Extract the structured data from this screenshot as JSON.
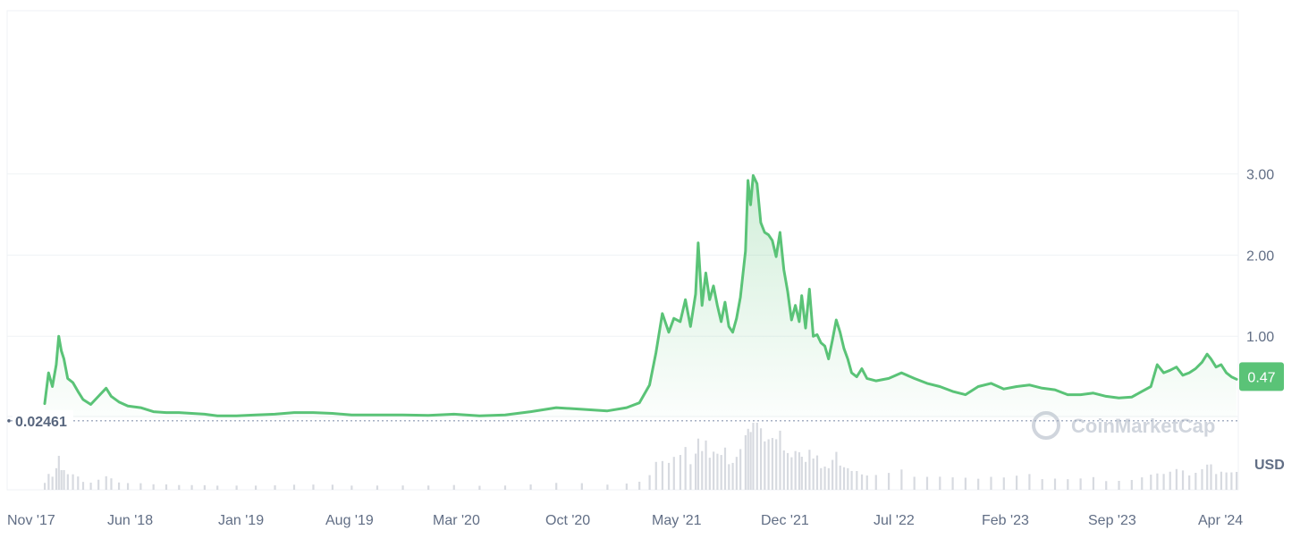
{
  "chart_data": {
    "type": "area",
    "currency_label": "USD",
    "watermark": "CoinMarketCap",
    "current_price_label": "0.47",
    "current_price": 0.47,
    "min_price_label": "0.02461",
    "min_price": 0.02461,
    "ylim": [
      -0.8,
      3.9
    ],
    "y_ticks": [
      {
        "value": 1,
        "label": "1.00"
      },
      {
        "value": 2,
        "label": "2.00"
      },
      {
        "value": 3,
        "label": "3.00"
      }
    ],
    "x_ticks": [
      "Nov '17",
      "Jun '18",
      "Jan '19",
      "Aug '19",
      "Mar '20",
      "Oct '20",
      "May '21",
      "Dec '21",
      "Jul '22",
      "Feb '23",
      "Sep '23",
      "Apr '24"
    ],
    "x_start": "2017-10",
    "x_end": "2024-04",
    "colors": {
      "line": "#5ac377",
      "area_top": "#5ac377",
      "badge": "#5ac377",
      "grid": "#eff2f5",
      "volume": "#d7dae0",
      "dotted": "#a6b0c3"
    },
    "series": [
      {
        "values": [
          [
            0.0,
            0.17
          ],
          [
            0.3,
            0.55
          ],
          [
            0.6,
            0.38
          ],
          [
            0.9,
            0.65
          ],
          [
            1.1,
            1.0
          ],
          [
            1.3,
            0.82
          ],
          [
            1.5,
            0.72
          ],
          [
            1.8,
            0.48
          ],
          [
            2.2,
            0.43
          ],
          [
            2.6,
            0.32
          ],
          [
            3.0,
            0.22
          ],
          [
            3.6,
            0.16
          ],
          [
            4.2,
            0.26
          ],
          [
            4.8,
            0.36
          ],
          [
            5.2,
            0.26
          ],
          [
            5.8,
            0.19
          ],
          [
            6.5,
            0.14
          ],
          [
            7.5,
            0.12
          ],
          [
            8.5,
            0.07
          ],
          [
            9.5,
            0.06
          ],
          [
            10.5,
            0.06
          ],
          [
            11.5,
            0.05
          ],
          [
            12.5,
            0.04
          ],
          [
            13.5,
            0.02
          ],
          [
            15,
            0.02
          ],
          [
            16.5,
            0.03
          ],
          [
            18,
            0.04
          ],
          [
            19.5,
            0.06
          ],
          [
            21,
            0.06
          ],
          [
            22.5,
            0.05
          ],
          [
            24,
            0.03
          ],
          [
            26,
            0.03
          ],
          [
            28,
            0.03
          ],
          [
            30,
            0.025
          ],
          [
            32,
            0.04
          ],
          [
            34,
            0.02
          ],
          [
            36,
            0.03
          ],
          [
            38,
            0.07
          ],
          [
            40,
            0.12
          ],
          [
            42,
            0.1
          ],
          [
            44,
            0.08
          ],
          [
            45.5,
            0.12
          ],
          [
            46.5,
            0.18
          ],
          [
            47.3,
            0.4
          ],
          [
            47.8,
            0.8
          ],
          [
            48.3,
            1.28
          ],
          [
            48.8,
            1.05
          ],
          [
            49.2,
            1.22
          ],
          [
            49.7,
            1.18
          ],
          [
            50.1,
            1.45
          ],
          [
            50.5,
            1.12
          ],
          [
            50.9,
            1.52
          ],
          [
            51.1,
            2.15
          ],
          [
            51.4,
            1.38
          ],
          [
            51.7,
            1.78
          ],
          [
            52.0,
            1.45
          ],
          [
            52.3,
            1.62
          ],
          [
            52.6,
            1.38
          ],
          [
            52.9,
            1.18
          ],
          [
            53.2,
            1.42
          ],
          [
            53.5,
            1.12
          ],
          [
            53.8,
            1.05
          ],
          [
            54.1,
            1.22
          ],
          [
            54.4,
            1.48
          ],
          [
            54.8,
            2.05
          ],
          [
            55.0,
            2.92
          ],
          [
            55.2,
            2.62
          ],
          [
            55.4,
            2.98
          ],
          [
            55.7,
            2.88
          ],
          [
            56.0,
            2.4
          ],
          [
            56.3,
            2.28
          ],
          [
            56.6,
            2.25
          ],
          [
            56.9,
            2.18
          ],
          [
            57.2,
            1.98
          ],
          [
            57.5,
            2.28
          ],
          [
            57.8,
            1.82
          ],
          [
            58.1,
            1.55
          ],
          [
            58.4,
            1.2
          ],
          [
            58.7,
            1.38
          ],
          [
            59.0,
            1.18
          ],
          [
            59.2,
            1.5
          ],
          [
            59.5,
            1.1
          ],
          [
            59.8,
            1.58
          ],
          [
            60.1,
            1.0
          ],
          [
            60.4,
            1.02
          ],
          [
            60.7,
            0.92
          ],
          [
            61.0,
            0.88
          ],
          [
            61.3,
            0.72
          ],
          [
            61.6,
            0.95
          ],
          [
            61.9,
            1.2
          ],
          [
            62.2,
            1.05
          ],
          [
            62.5,
            0.85
          ],
          [
            62.8,
            0.72
          ],
          [
            63.1,
            0.55
          ],
          [
            63.5,
            0.5
          ],
          [
            63.9,
            0.6
          ],
          [
            64.3,
            0.48
          ],
          [
            65,
            0.45
          ],
          [
            66,
            0.48
          ],
          [
            67,
            0.55
          ],
          [
            68,
            0.48
          ],
          [
            69,
            0.42
          ],
          [
            70,
            0.38
          ],
          [
            71,
            0.32
          ],
          [
            72,
            0.28
          ],
          [
            73,
            0.38
          ],
          [
            74,
            0.42
          ],
          [
            75,
            0.35
          ],
          [
            76,
            0.38
          ],
          [
            77,
            0.4
          ],
          [
            78,
            0.36
          ],
          [
            79,
            0.34
          ],
          [
            80,
            0.28
          ],
          [
            81,
            0.28
          ],
          [
            82,
            0.3
          ],
          [
            83,
            0.26
          ],
          [
            84,
            0.24
          ],
          [
            85,
            0.25
          ],
          [
            85.8,
            0.32
          ],
          [
            86.5,
            0.38
          ],
          [
            87,
            0.65
          ],
          [
            87.5,
            0.55
          ],
          [
            88,
            0.58
          ],
          [
            88.5,
            0.62
          ],
          [
            89,
            0.52
          ],
          [
            89.5,
            0.55
          ],
          [
            90,
            0.6
          ],
          [
            90.5,
            0.68
          ],
          [
            90.9,
            0.78
          ],
          [
            91.2,
            0.72
          ],
          [
            91.6,
            0.62
          ],
          [
            92,
            0.65
          ],
          [
            92.4,
            0.55
          ],
          [
            92.8,
            0.5
          ],
          [
            93.2,
            0.47
          ]
        ]
      }
    ]
  }
}
